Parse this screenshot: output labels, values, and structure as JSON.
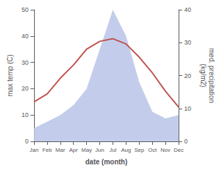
{
  "chart_data": {
    "type": "line",
    "xlabel": "date (month)",
    "ylabel": "max temp (C)",
    "y2label": "med. precipitation\n(kg/m2)",
    "categories": [
      "Jan",
      "Feb",
      "Mar",
      "Apr",
      "May",
      "Jun",
      "Jul",
      "Aug",
      "Sep",
      "Oct",
      "Nov",
      "Dec"
    ],
    "series": [
      {
        "type": "area",
        "axis": "y2",
        "color": "#b8c4e8",
        "values": [
          4,
          6,
          8,
          11,
          16,
          28,
          40,
          32,
          18,
          9,
          7,
          8
        ]
      },
      {
        "type": "line",
        "axis": "y",
        "color": "#c0504d",
        "values": [
          15,
          18,
          24,
          29,
          35,
          38,
          39,
          37,
          32,
          26,
          19,
          13
        ]
      }
    ],
    "ylim": [
      0,
      50
    ],
    "yticks": [
      0,
      10,
      20,
      30,
      40,
      50
    ],
    "y2lim": [
      0,
      40
    ],
    "y2ticks": [
      0,
      10,
      20,
      30,
      40
    ],
    "grid": false
  }
}
